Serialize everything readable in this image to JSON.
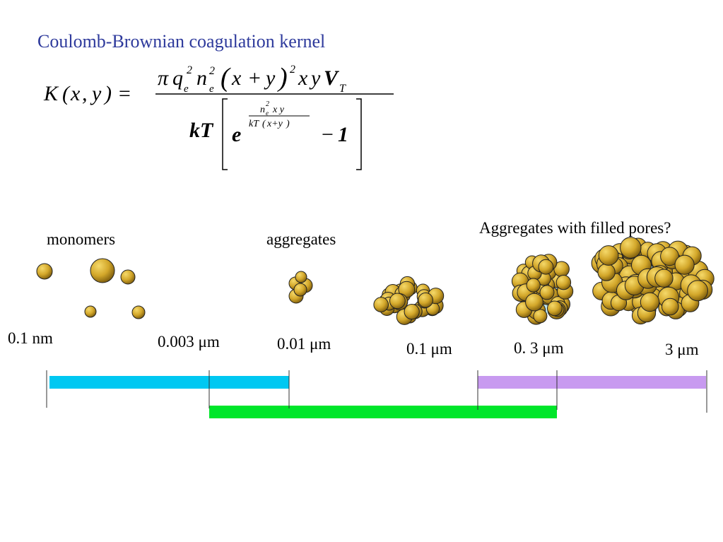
{
  "title": "Coulomb-Brownian coagulation kernel",
  "formula": {
    "lhs": "K(x, y) =",
    "numerator": "π q_e^2 n_e^2 (x + y)^2 x y V_T",
    "denominator": "kT [ e^(n_e^2 x y / (kT (x+y))) − 1 ]"
  },
  "categories": {
    "monomers": "monomers",
    "aggregates": "aggregates",
    "filled": "Aggregates with filled pores?"
  },
  "scale_labels": [
    "0.1 nm",
    "0.003 μm",
    "0.01 μm",
    "0.1 μm",
    "0. 3 μm",
    "3 μm"
  ],
  "colors": {
    "title": "#2e3a9c",
    "bar_cyan": "#00c8f2",
    "bar_green": "#00e62a",
    "bar_violet": "#c89af0",
    "particle": "#d4a82a",
    "pore": "#bfe6ee"
  }
}
